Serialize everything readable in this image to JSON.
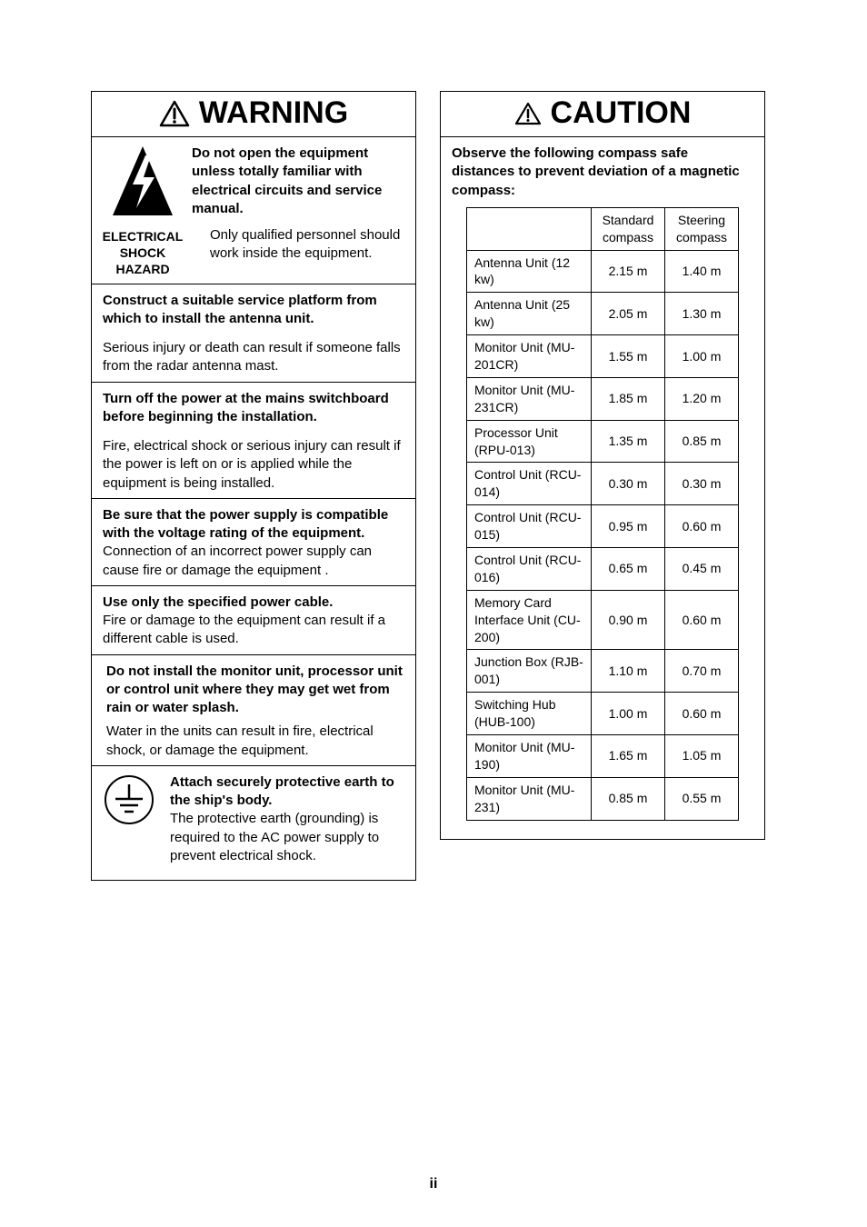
{
  "page_number": "ii",
  "warning": {
    "title": "WARNING",
    "sec1": {
      "bold": "Do not open the equipment unless totally familiar with electrical circuits and service manual.",
      "hazard_label_l1": "ELECTRICAL",
      "hazard_label_l2": "SHOCK",
      "hazard_label_l3": "HAZARD",
      "body": "Only qualified personnel should work inside the equipment."
    },
    "sec2": {
      "bold": "Construct a suitable service platform from which to install the antenna unit.",
      "body": "Serious injury or death can result if someone falls from the radar antenna mast."
    },
    "sec3": {
      "bold": "Turn off the power at the mains switchboard before beginning the installation.",
      "body": "Fire, electrical shock or serious injury can result if the power is left on or is applied while the equipment is being installed."
    },
    "sec4": {
      "bold": "Be sure that the power supply is compatible with the voltage rating of the equipment.",
      "body": "Connection of an incorrect power supply can cause fire or damage the equipment ."
    },
    "sec5": {
      "bold": "Use only the specified power cable.",
      "body": "Fire or damage to the equipment can result if a different cable is used."
    },
    "sec6": {
      "bold": "Do not install the monitor unit, processor unit or control unit where they may get wet from rain or water splash.",
      "body": "Water in the units can result in fire, electrical shock, or damage the equipment."
    },
    "sec7": {
      "bold": "Attach securely protective earth to the ship's body.",
      "body": "The protective earth (grounding) is required to the AC power supply to prevent electrical shock."
    }
  },
  "caution": {
    "title": "CAUTION",
    "intro": "Observe the following compass safe distances to prevent deviation of a magnetic compass:",
    "columns": [
      "Standard compass",
      "Steering compass"
    ],
    "rows": [
      {
        "label": "Antenna Unit (12 kw)",
        "std": "2.15 m",
        "steer": "1.40 m"
      },
      {
        "label": "Antenna Unit (25 kw)",
        "std": "2.05 m",
        "steer": "1.30 m"
      },
      {
        "label": "Monitor Unit (MU-201CR)",
        "std": "1.55 m",
        "steer": "1.00 m"
      },
      {
        "label": "Monitor Unit (MU-231CR)",
        "std": "1.85 m",
        "steer": "1.20 m"
      },
      {
        "label": "Processor Unit (RPU-013)",
        "std": "1.35 m",
        "steer": "0.85 m"
      },
      {
        "label": "Control Unit (RCU-014)",
        "std": "0.30 m",
        "steer": "0.30 m"
      },
      {
        "label": "Control Unit (RCU-015)",
        "std": "0.95 m",
        "steer": "0.60 m"
      },
      {
        "label": "Control Unit (RCU-016)",
        "std": "0.65 m",
        "steer": "0.45 m"
      },
      {
        "label": "Memory Card Interface Unit (CU-200)",
        "std": "0.90 m",
        "steer": "0.60 m"
      },
      {
        "label": "Junction Box (RJB-001)",
        "std": "1.10 m",
        "steer": "0.70 m"
      },
      {
        "label": "Switching Hub (HUB-100)",
        "std": "1.00 m",
        "steer": "0.60 m"
      },
      {
        "label": "Monitor Unit (MU-190)",
        "std": "1.65 m",
        "steer": "1.05 m"
      },
      {
        "label": "Monitor Unit (MU-231)",
        "std": "0.85 m",
        "steer": "0.55 m"
      }
    ]
  },
  "colors": {
    "text": "#000000",
    "bg": "#ffffff",
    "border": "#000000"
  }
}
